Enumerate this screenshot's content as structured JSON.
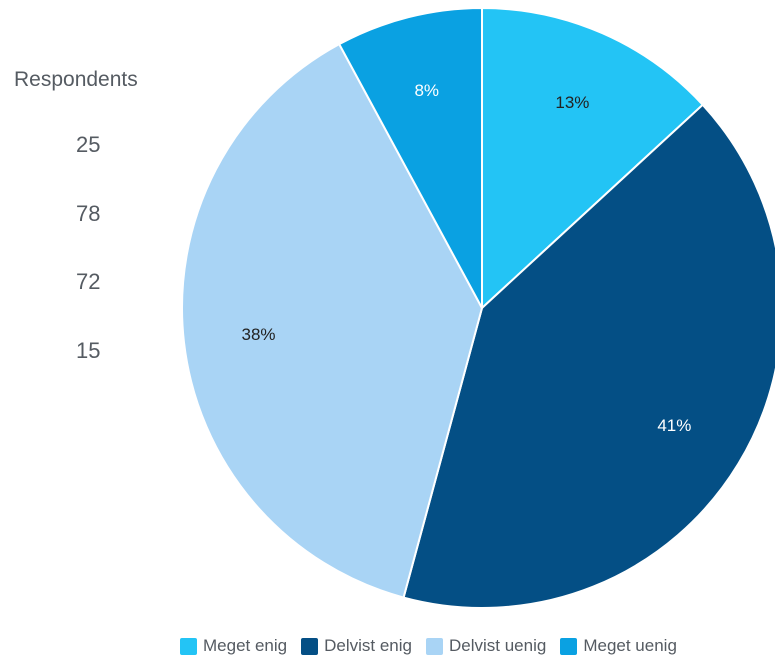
{
  "side_panel": {
    "title": "Respondents",
    "values": [
      "25",
      "78",
      "72",
      "15"
    ]
  },
  "chart_data": {
    "type": "pie",
    "categories": [
      "Meget enig",
      "Delvist enig",
      "Delvist uenig",
      "Meget uenig"
    ],
    "values": [
      25,
      78,
      72,
      15
    ],
    "percent_labels": [
      "13%",
      "41%",
      "38%",
      "8%"
    ],
    "colors": [
      "#23c4f5",
      "#044f85",
      "#a9d4f5",
      "#0aa1e2"
    ],
    "label_colors": [
      "#222222",
      "#ffffff",
      "#222222",
      "#ffffff"
    ],
    "start": "12 o'clock",
    "direction": "clockwise",
    "legend_position": "bottom"
  }
}
